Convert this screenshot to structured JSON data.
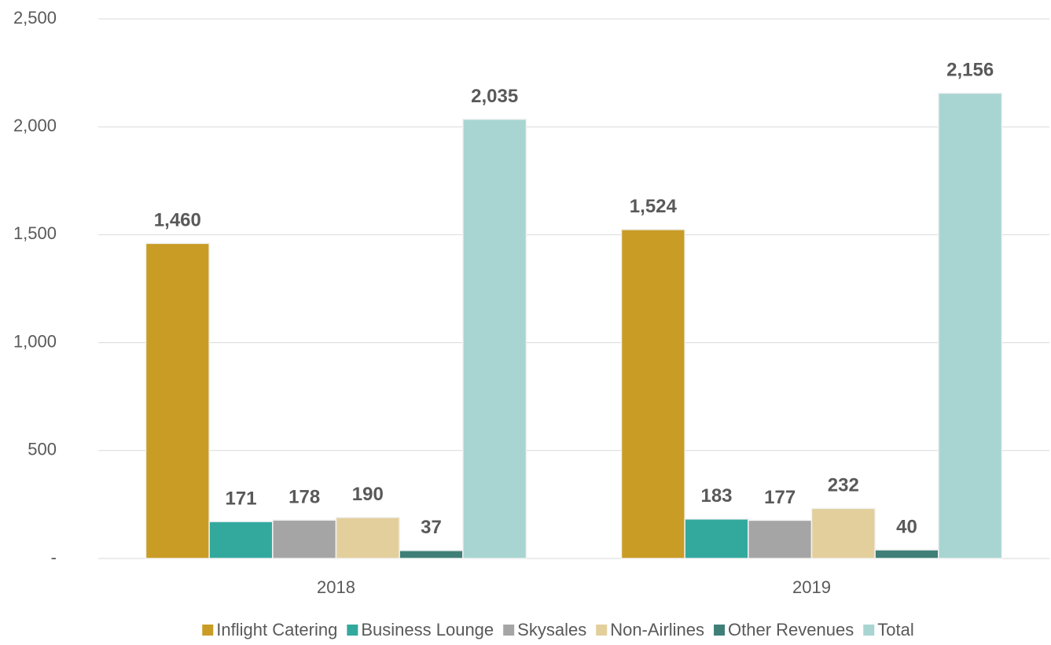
{
  "chart_data": {
    "type": "bar",
    "categories": [
      "2018",
      "2019"
    ],
    "series": [
      {
        "name": "Inflight Catering",
        "color": "#c99c26",
        "values": [
          1460,
          1524
        ],
        "value_labels": [
          "1,460",
          "1,524"
        ]
      },
      {
        "name": "Business Lounge",
        "color": "#33a99e",
        "values": [
          171,
          183
        ]
      },
      {
        "name": "Skysales",
        "color": "#a5a5a5",
        "values": [
          178,
          177
        ]
      },
      {
        "name": "Non-Airlines",
        "color": "#e3cf9c",
        "values": [
          190,
          232
        ]
      },
      {
        "name": "Other Revenues",
        "color": "#3f7f78",
        "values": [
          37,
          40
        ]
      },
      {
        "name": "Total",
        "color": "#a8d5d1",
        "values": [
          2035,
          2156
        ],
        "value_labels": [
          "2,035",
          "2,156"
        ]
      }
    ],
    "ylim": [
      0,
      2500
    ],
    "yticks": [
      {
        "value": 0,
        "label": "-"
      },
      500,
      {
        "value": 1000,
        "label": "1,000"
      },
      {
        "value": 1500,
        "label": "1,500"
      },
      {
        "value": 2000,
        "label": "2,000"
      },
      {
        "value": 2500,
        "label": "2,500"
      }
    ],
    "grid": true,
    "legend": "bottom"
  }
}
